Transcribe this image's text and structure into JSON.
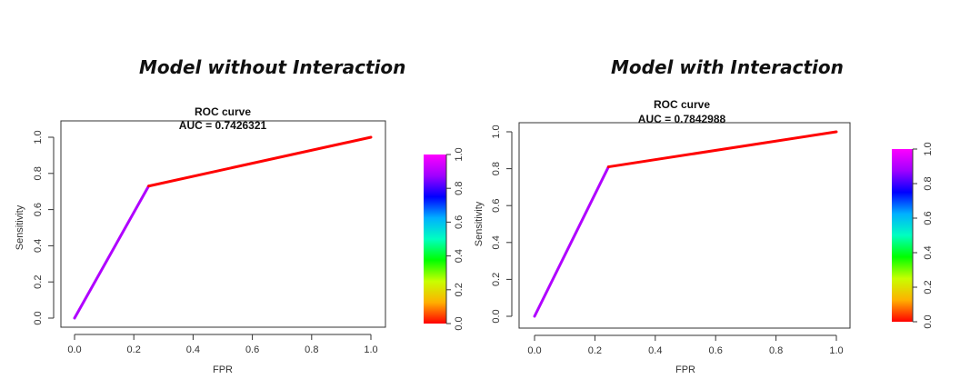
{
  "headings": {
    "left": "Model without Interaction",
    "right": "Model with Interaction"
  },
  "chart_data": [
    {
      "type": "line",
      "title": "ROC curve",
      "subtitle": "AUC = 0.7426321",
      "xlabel": "FPR",
      "ylabel": "Sensitivity",
      "xlim": [
        0,
        1
      ],
      "ylim": [
        0,
        1
      ],
      "x_ticks": [
        "0.0",
        "0.2",
        "0.4",
        "0.6",
        "0.8",
        "1.0"
      ],
      "y_ticks": [
        "0.0",
        "0.2",
        "0.4",
        "0.6",
        "0.8",
        "1.0"
      ],
      "grid": false,
      "series": [
        {
          "x": [
            0,
            0.25,
            1
          ],
          "y": [
            0,
            0.73,
            1
          ]
        }
      ],
      "colorbar": {
        "min": 0,
        "max": 1,
        "ticks": [
          "0.0",
          "0.2",
          "0.4",
          "0.6",
          "0.8",
          "1.0"
        ],
        "colors": [
          "#ff0000",
          "#ffb000",
          "#c8ff00",
          "#00ff00",
          "#00ffc0",
          "#00b0ff",
          "#0000ff",
          "#a000ff",
          "#ff00ff"
        ]
      }
    },
    {
      "type": "line",
      "title": "ROC curve",
      "subtitle": "AUC = 0.7842988",
      "xlabel": "FPR",
      "ylabel": "Sensitivity",
      "xlim": [
        0,
        1
      ],
      "ylim": [
        0,
        1
      ],
      "x_ticks": [
        "0.0",
        "0.2",
        "0.4",
        "0.6",
        "0.8",
        "1.0"
      ],
      "y_ticks": [
        "0.0",
        "0.2",
        "0.4",
        "0.6",
        "0.8",
        "1.0"
      ],
      "grid": false,
      "series": [
        {
          "x": [
            0,
            0.245,
            1
          ],
          "y": [
            0,
            0.81,
            1
          ]
        }
      ],
      "colorbar": {
        "min": 0,
        "max": 1,
        "ticks": [
          "0.0",
          "0.2",
          "0.4",
          "0.6",
          "0.8",
          "1.0"
        ],
        "colors": [
          "#ff0000",
          "#ffb000",
          "#c8ff00",
          "#00ff00",
          "#00ffc0",
          "#00b0ff",
          "#0000ff",
          "#a000ff",
          "#ff00ff"
        ]
      }
    }
  ]
}
